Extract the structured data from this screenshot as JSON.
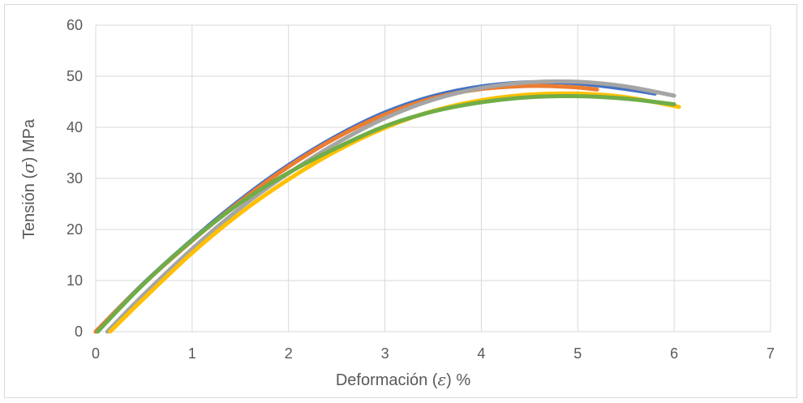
{
  "chart_data": {
    "type": "line",
    "title": "",
    "xlabel": {
      "prefix": "Deformación (",
      "symbol": "ε",
      "suffix": ")  %"
    },
    "ylabel": {
      "prefix": "Tensión (",
      "symbol": "σ",
      "suffix": ")  MPa"
    },
    "xlim": [
      0,
      7
    ],
    "ylim": [
      0,
      60
    ],
    "xticks": [
      0,
      1,
      2,
      3,
      4,
      5,
      6,
      7
    ],
    "yticks": [
      0,
      10,
      20,
      30,
      40,
      50,
      60
    ],
    "grid": true,
    "legend": "none",
    "series": [
      {
        "color": "#4472C4",
        "x": [
          0.0,
          0.5,
          1.0,
          1.5,
          2.0,
          2.5,
          3.0,
          3.5,
          4.0,
          4.5,
          5.0,
          5.5,
          5.8
        ],
        "y": [
          0,
          9.5,
          18.0,
          25.8,
          32.6,
          38.3,
          42.9,
          46.1,
          48.0,
          48.8,
          48.6,
          47.5,
          46.6
        ]
      },
      {
        "color": "#ED7D31",
        "x": [
          0.0,
          0.5,
          1.0,
          1.5,
          2.0,
          2.5,
          3.0,
          3.5,
          4.0,
          4.5,
          4.8,
          5.0,
          5.2
        ],
        "y": [
          0,
          9.4,
          17.8,
          25.5,
          32.3,
          38.0,
          42.5,
          45.7,
          47.5,
          48.1,
          48.0,
          47.8,
          47.4
        ]
      },
      {
        "color": "#A5A5A5",
        "x": [
          0.12,
          0.5,
          1.0,
          1.5,
          2.0,
          2.5,
          3.0,
          3.5,
          4.0,
          4.5,
          5.0,
          5.5,
          6.0
        ],
        "y": [
          0,
          7.3,
          16.2,
          24.2,
          31.0,
          36.9,
          41.8,
          45.4,
          47.7,
          48.8,
          48.9,
          48.0,
          46.2
        ]
      },
      {
        "color": "#FFC000",
        "x": [
          0.15,
          0.5,
          1.0,
          1.5,
          2.0,
          2.5,
          3.0,
          3.5,
          4.0,
          4.5,
          5.0,
          5.5,
          6.05
        ],
        "y": [
          0,
          6.5,
          15.4,
          23.2,
          29.8,
          35.4,
          39.9,
          43.2,
          45.3,
          46.4,
          46.6,
          45.9,
          44.0
        ]
      },
      {
        "color": "#70AD47",
        "x": [
          0.02,
          0.5,
          1.0,
          1.5,
          2.0,
          2.5,
          3.0,
          3.5,
          4.0,
          4.5,
          5.0,
          5.5,
          6.0
        ],
        "y": [
          0,
          9.4,
          17.9,
          25.2,
          31.1,
          36.0,
          40.2,
          43.1,
          44.9,
          45.9,
          46.1,
          45.6,
          44.5
        ]
      }
    ]
  }
}
